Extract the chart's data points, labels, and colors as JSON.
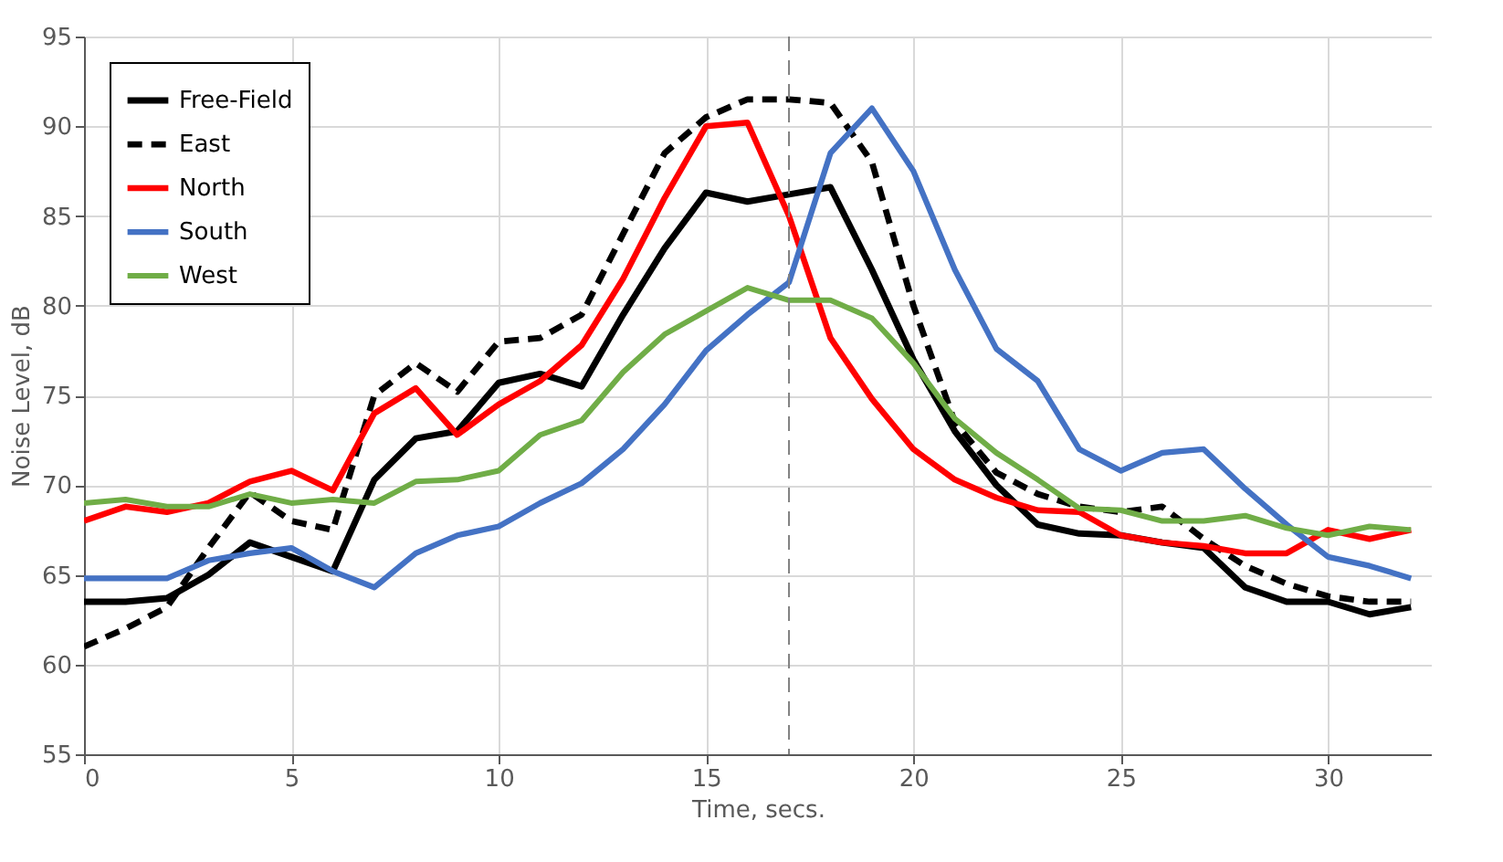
{
  "chart_data": {
    "type": "line",
    "xlabel": "Time, secs.",
    "ylabel": "Noise Level, dB",
    "x": [
      0,
      1,
      2,
      3,
      4,
      5,
      6,
      7,
      8,
      9,
      10,
      11,
      12,
      13,
      14,
      15,
      16,
      17,
      18,
      19,
      20,
      21,
      22,
      23,
      24,
      25,
      26,
      27,
      28,
      29,
      30,
      31,
      32
    ],
    "xlim": [
      0,
      32.5
    ],
    "xticks": [
      0,
      5,
      10,
      15,
      20,
      25,
      30
    ],
    "ylim": [
      55,
      95
    ],
    "yticks": [
      55,
      60,
      65,
      70,
      75,
      80,
      85,
      90,
      95
    ],
    "grid": true,
    "legend": "top left",
    "marker": "none",
    "ref_lines": [
      {
        "axis": "x",
        "value": 17,
        "color": "#808080",
        "line_style": "dashed"
      }
    ],
    "series": [
      {
        "name": "Free-Field",
        "color": "#000000",
        "line_style": "solid",
        "values": [
          63.5,
          63.5,
          63.7,
          65,
          66.8,
          66,
          65.2,
          70.3,
          72.6,
          73,
          75.7,
          76.2,
          75.5,
          79.5,
          83.2,
          86.3,
          85.8,
          86.2,
          86.6,
          82,
          77,
          73,
          70,
          67.8,
          67.3,
          67.2,
          66.8,
          66.5,
          64.3,
          63.5,
          63.5,
          62.8,
          63.2
        ]
      },
      {
        "name": "East",
        "color": "#000000",
        "line_style": "dashed",
        "values": [
          61,
          62,
          63.2,
          66.5,
          69.6,
          68,
          67.5,
          75,
          76.8,
          75.2,
          78,
          78.2,
          79.5,
          84,
          88.5,
          90.5,
          91.5,
          91.5,
          91.3,
          88,
          80,
          73.5,
          70.7,
          69.5,
          68.8,
          68.5,
          68.8,
          67,
          65.5,
          64.5,
          63.8,
          63.5,
          63.5
        ]
      },
      {
        "name": "North",
        "color": "#ff0000",
        "line_style": "solid",
        "values": [
          68,
          68.8,
          68.5,
          69,
          70.2,
          70.8,
          69.7,
          74,
          75.4,
          72.8,
          74.5,
          75.8,
          77.8,
          81.5,
          86,
          90,
          90.2,
          85,
          78.2,
          74.8,
          72,
          70.3,
          69.3,
          68.6,
          68.5,
          67.2,
          66.8,
          66.6,
          66.2,
          66.2,
          67.5,
          67,
          67.5
        ]
      },
      {
        "name": "South",
        "color": "#4472c4",
        "line_style": "solid",
        "values": [
          64.8,
          64.8,
          64.8,
          65.8,
          66.2,
          66.5,
          65.2,
          64.3,
          66.2,
          67.2,
          67.7,
          69,
          70.1,
          72,
          74.5,
          77.5,
          79.5,
          81.3,
          88.5,
          91,
          87.5,
          82,
          77.6,
          75.8,
          72,
          70.8,
          71.8,
          72,
          69.8,
          67.8,
          66,
          65.5,
          64.8
        ]
      },
      {
        "name": "West",
        "color": "#70ad47",
        "line_style": "solid",
        "values": [
          69,
          69.2,
          68.8,
          68.8,
          69.5,
          69,
          69.2,
          69,
          70.2,
          70.3,
          70.8,
          72.8,
          73.6,
          76.3,
          78.4,
          79.7,
          81,
          80.3,
          80.3,
          79.3,
          76.8,
          73.7,
          71.8,
          70.3,
          68.7,
          68.6,
          68,
          68,
          68.3,
          67.6,
          67.2,
          67.7,
          67.5
        ]
      }
    ]
  }
}
